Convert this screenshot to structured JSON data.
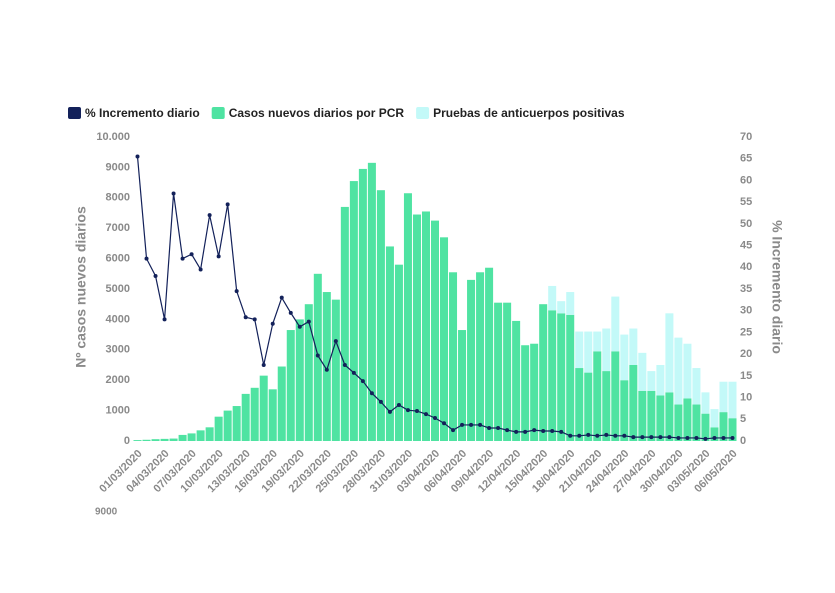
{
  "chart_data": {
    "type": "combo",
    "legend": [
      {
        "name": "% Incremento diario",
        "color": "#13215a"
      },
      {
        "name": "Casos nuevos diarios por PCR",
        "color": "#4fe3a2"
      },
      {
        "name": "Pruebas de anticuerpos positivas",
        "color": "#c3f9f8"
      }
    ],
    "categories": [
      "01/03/2020",
      null,
      null,
      "04/03/2020",
      null,
      null,
      "07/03/2020",
      null,
      null,
      "10/03/2020",
      null,
      null,
      "13/03/2020",
      null,
      null,
      "16/03/2020",
      null,
      null,
      "19/03/2020",
      null,
      null,
      "22/03/2020",
      null,
      null,
      "25/03/2020",
      null,
      null,
      "28/03/2020",
      null,
      null,
      "31/03/2020",
      null,
      null,
      "03/04/2020",
      null,
      null,
      "06/04/2020",
      null,
      null,
      "09/04/2020",
      null,
      null,
      "12/04/2020",
      null,
      null,
      "15/04/2020",
      null,
      null,
      "18/04/2020",
      null,
      null,
      "21/04/2020",
      null,
      null,
      "24/04/2020",
      null,
      null,
      "27/04/2020",
      null,
      null,
      "30/04/2020",
      null,
      null,
      "03/05/2020",
      null,
      null,
      "06/05/2020"
    ],
    "series": [
      {
        "name": "Casos nuevos diarios por PCR",
        "color": "#4fe3a2",
        "axis": "y",
        "values": [
          30,
          40,
          60,
          70,
          80,
          200,
          250,
          350,
          450,
          800,
          1000,
          1150,
          1550,
          1750,
          2150,
          1700,
          2450,
          3650,
          4000,
          4500,
          5500,
          4900,
          4650,
          7700,
          8550,
          8950,
          9150,
          8250,
          6400,
          5800,
          8150,
          7450,
          7550,
          7250,
          6700,
          5550,
          3650,
          5300,
          5550,
          5700,
          4550,
          4550,
          3950,
          3150,
          3200,
          4500,
          4300,
          4200,
          4150,
          2400,
          2250,
          2950,
          2300,
          2950,
          2000,
          2500,
          1650,
          1650,
          1500,
          1600,
          1200,
          1400,
          1200,
          900,
          450,
          950,
          750
        ]
      },
      {
        "name": "Pruebas de anticuerpos positivas",
        "color": "#c3f9f8",
        "axis": "y",
        "values": [
          null,
          null,
          null,
          null,
          null,
          null,
          null,
          null,
          null,
          null,
          null,
          null,
          null,
          null,
          null,
          null,
          null,
          null,
          null,
          null,
          null,
          null,
          null,
          null,
          null,
          null,
          null,
          null,
          null,
          null,
          null,
          null,
          null,
          null,
          null,
          null,
          null,
          null,
          null,
          null,
          null,
          null,
          null,
          null,
          null,
          0,
          800,
          400,
          750,
          1200,
          1350,
          650,
          1400,
          1800,
          1500,
          1200,
          1250,
          650,
          1000,
          2600,
          2200,
          1800,
          1200,
          700,
          600,
          1000,
          1200
        ]
      },
      {
        "name": "% Incremento diario",
        "color": "#13215a",
        "axis": "y2",
        "values": [
          65.5,
          42,
          38,
          28,
          57,
          42,
          43,
          39.5,
          52,
          42.5,
          54.5,
          34.5,
          28.5,
          28,
          17.5,
          27,
          33,
          29.5,
          26.3,
          27.5,
          19.7,
          16.4,
          23,
          17.5,
          15.7,
          13.8,
          11,
          9,
          6.7,
          8.3,
          7.1,
          6.9,
          6.2,
          5.3,
          4.1,
          2.5,
          3.7,
          3.7,
          3.7,
          3,
          3,
          2.5,
          2.1,
          2.1,
          2.5,
          2.3,
          2.3,
          2.1,
          1.2,
          1.2,
          1.4,
          1.2,
          1.4,
          1.2,
          1.2,
          0.9,
          0.9,
          0.9,
          0.9,
          0.9,
          0.7,
          0.7,
          0.7,
          0.5,
          0.7,
          0.7,
          0.7
        ]
      }
    ],
    "ylabel": "Nº casos nuevos diarios",
    "y2label": "% Incremento diario",
    "ylim": [
      0,
      10000
    ],
    "yticks": [
      0,
      1000,
      2000,
      3000,
      4000,
      5000,
      6000,
      7000,
      8000,
      9000,
      {
        "value": 10000,
        "label": "10.000"
      }
    ],
    "y2lim": [
      0,
      70
    ],
    "y2ticks": [
      0,
      5,
      10,
      15,
      20,
      25,
      30,
      35,
      40,
      45,
      50,
      55,
      60,
      65,
      70
    ],
    "footnote": "9000"
  }
}
